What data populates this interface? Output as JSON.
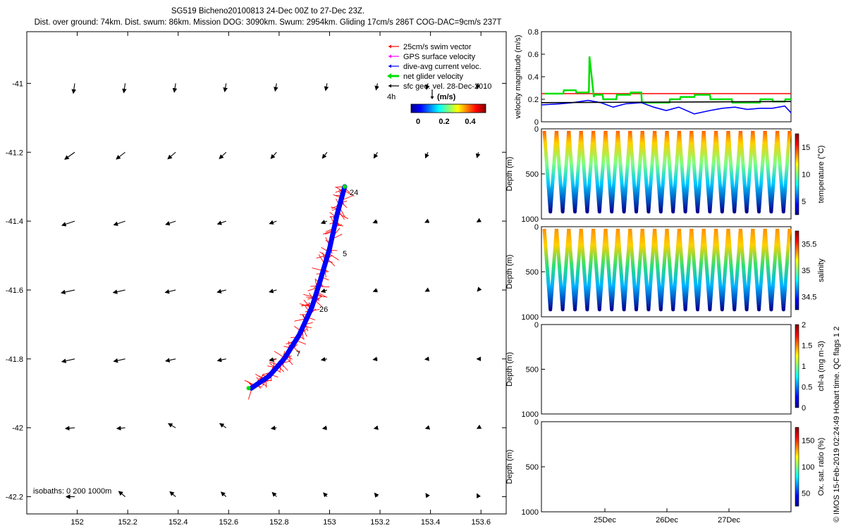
{
  "header": {
    "title_line1": "SG519 Bicheno20100813 24-Dec 00Z to 27-Dec 23Z.",
    "title_line2": "Dist. over ground: 74km. Dist. swum: 86km. Mission DOG: 3090km. Swum: 2954km. Gliding 17cm/s 286T COG-DAC=9cm/s 237T"
  },
  "colors": {
    "swim": "#ff0000",
    "gps": "#ff00ff",
    "dac": "#0000ff",
    "net": "#00e000",
    "sfc": "#000000"
  },
  "map": {
    "legend": [
      {
        "label": "25cm/s swim vector",
        "color_key": "swim"
      },
      {
        "label": "GPS surface velocity",
        "color_key": "gps"
      },
      {
        "label": "dive-avg current veloc.",
        "color_key": "dac"
      },
      {
        "label": "net glider velocity",
        "color_key": "net"
      },
      {
        "label": "sfc geo. vel. 28-Dec-2010",
        "color_key": "sfc"
      }
    ],
    "scale_label": "4h",
    "colorbar": {
      "unit": "(m/s)",
      "ticks": [
        "0",
        "0.2",
        "0.4"
      ]
    },
    "isobaths_label": "isobaths: 0   200   1000m",
    "track_labels": [
      "24",
      "5",
      "26",
      "7"
    ]
  },
  "side_label": "© IMOS 15-Feb-2019 02:24:49 Hobart time. QC flags 1  2",
  "chart_data": [
    {
      "type": "quiver",
      "title": "",
      "xlim": [
        151.8,
        153.7
      ],
      "ylim": [
        -42.25,
        -40.85
      ],
      "x_ticks": [
        152,
        152.2,
        152.4,
        152.6,
        152.8,
        153,
        153.2,
        153.4,
        153.6
      ],
      "x_tick_labels": [
        "152",
        "152.2",
        "152.4",
        "152.6",
        "152.8",
        "153",
        "153.2",
        "153.4",
        "153.6"
      ],
      "y_ticks": [
        -41,
        -41.2,
        -41.4,
        -41.6,
        -41.8,
        -42,
        -42.2
      ],
      "y_tick_labels": [
        "-41",
        "-41.2",
        "-41.4",
        "-41.6",
        "-41.8",
        "-42",
        "-42.2"
      ],
      "arrow_lons": [
        151.99,
        152.19,
        152.39,
        152.59,
        152.79,
        152.99,
        153.19,
        153.39,
        153.59
      ],
      "arrow_lats": [
        -41.0,
        -41.2,
        -41.4,
        -41.6,
        -41.8,
        -42.0,
        -42.2
      ],
      "glider_track": [
        [
          153.06,
          -41.3
        ],
        [
          153.03,
          -41.38
        ],
        [
          153.0,
          -41.48
        ],
        [
          152.96,
          -41.58
        ],
        [
          152.93,
          -41.65
        ],
        [
          152.88,
          -41.73
        ],
        [
          152.82,
          -41.8
        ],
        [
          152.76,
          -41.85
        ],
        [
          152.69,
          -41.885
        ]
      ]
    },
    {
      "type": "line",
      "ylabel": "velocity magnitude (m/s)",
      "ylim": [
        0,
        0.8
      ],
      "y_ticks": [
        "0",
        "0.2",
        "0.4",
        "0.6",
        "0.8"
      ],
      "xlim": [
        0,
        4
      ],
      "series": [
        {
          "name": "swim",
          "color_key": "swim",
          "x": [
            0,
            4
          ],
          "values": [
            0.25,
            0.25
          ]
        },
        {
          "name": "net",
          "color_key": "net",
          "x": [
            0.05,
            0.35,
            0.36,
            0.55,
            0.56,
            0.76,
            0.77,
            0.84,
            0.85,
            0.98,
            0.99,
            1.2,
            1.21,
            1.42,
            1.43,
            1.6,
            1.61,
            2.05,
            2.06,
            2.22,
            2.23,
            2.45,
            2.46,
            2.7,
            2.71,
            3.05,
            3.06,
            3.5,
            3.51,
            3.7,
            3.71,
            3.9,
            3.91,
            4.0
          ],
          "values": [
            0.25,
            0.25,
            0.28,
            0.28,
            0.26,
            0.26,
            0.58,
            0.22,
            0.24,
            0.24,
            0.2,
            0.2,
            0.24,
            0.24,
            0.26,
            0.26,
            0.17,
            0.17,
            0.2,
            0.2,
            0.22,
            0.22,
            0.24,
            0.24,
            0.2,
            0.2,
            0.17,
            0.17,
            0.2,
            0.2,
            0.18,
            0.18,
            0.2,
            0.2
          ]
        },
        {
          "name": "dac",
          "color_key": "dac",
          "x": [
            0,
            0.3,
            0.5,
            0.75,
            0.95,
            1.15,
            1.35,
            1.6,
            1.8,
            2.0,
            2.2,
            2.45,
            2.7,
            2.9,
            3.1,
            3.3,
            3.5,
            3.7,
            3.9,
            4.0
          ],
          "values": [
            0.15,
            0.16,
            0.17,
            0.19,
            0.17,
            0.13,
            0.16,
            0.17,
            0.13,
            0.1,
            0.13,
            0.07,
            0.1,
            0.12,
            0.13,
            0.11,
            0.12,
            0.12,
            0.14,
            0.08
          ]
        },
        {
          "name": "sfc",
          "color_key": "sfc",
          "x": [
            0,
            4
          ],
          "values": [
            0.17,
            0.18
          ]
        }
      ]
    },
    {
      "type": "scatter",
      "ylabel": "Depth (m)",
      "ylim": [
        0,
        1000
      ],
      "y_ticks": [
        "0",
        "500",
        "1000"
      ],
      "colorbar_label": "temperature (°C)",
      "colorbar_ticks": [
        "5",
        "10",
        "15"
      ],
      "dives": 20,
      "max_depth": 920
    },
    {
      "type": "scatter",
      "ylabel": "Depth (m)",
      "ylim": [
        0,
        1000
      ],
      "y_ticks": [
        "0",
        "500",
        "1000"
      ],
      "colorbar_label": "salinity",
      "colorbar_ticks": [
        "34.5",
        "35",
        "35.5"
      ],
      "dives": 20,
      "max_depth": 920
    },
    {
      "type": "scatter",
      "ylabel": "Depth (m)",
      "ylim": [
        0,
        1000
      ],
      "y_ticks": [
        "0",
        "500",
        "1000"
      ],
      "colorbar_label": "chl-a (mg m-3)",
      "colorbar_ticks": [
        "0",
        "0.5",
        "1",
        "1.5",
        "2"
      ],
      "dives": 0
    },
    {
      "type": "scatter",
      "ylabel": "Depth (m)",
      "ylim": [
        0,
        1000
      ],
      "y_ticks": [
        "0",
        "500",
        "1000"
      ],
      "colorbar_label": "Ox. sat. ratio (%)",
      "colorbar_ticks": [
        "50",
        "100",
        "150"
      ],
      "dives": 0,
      "x_tick_labels": [
        "25Dec",
        "26Dec",
        "27Dec"
      ]
    }
  ]
}
